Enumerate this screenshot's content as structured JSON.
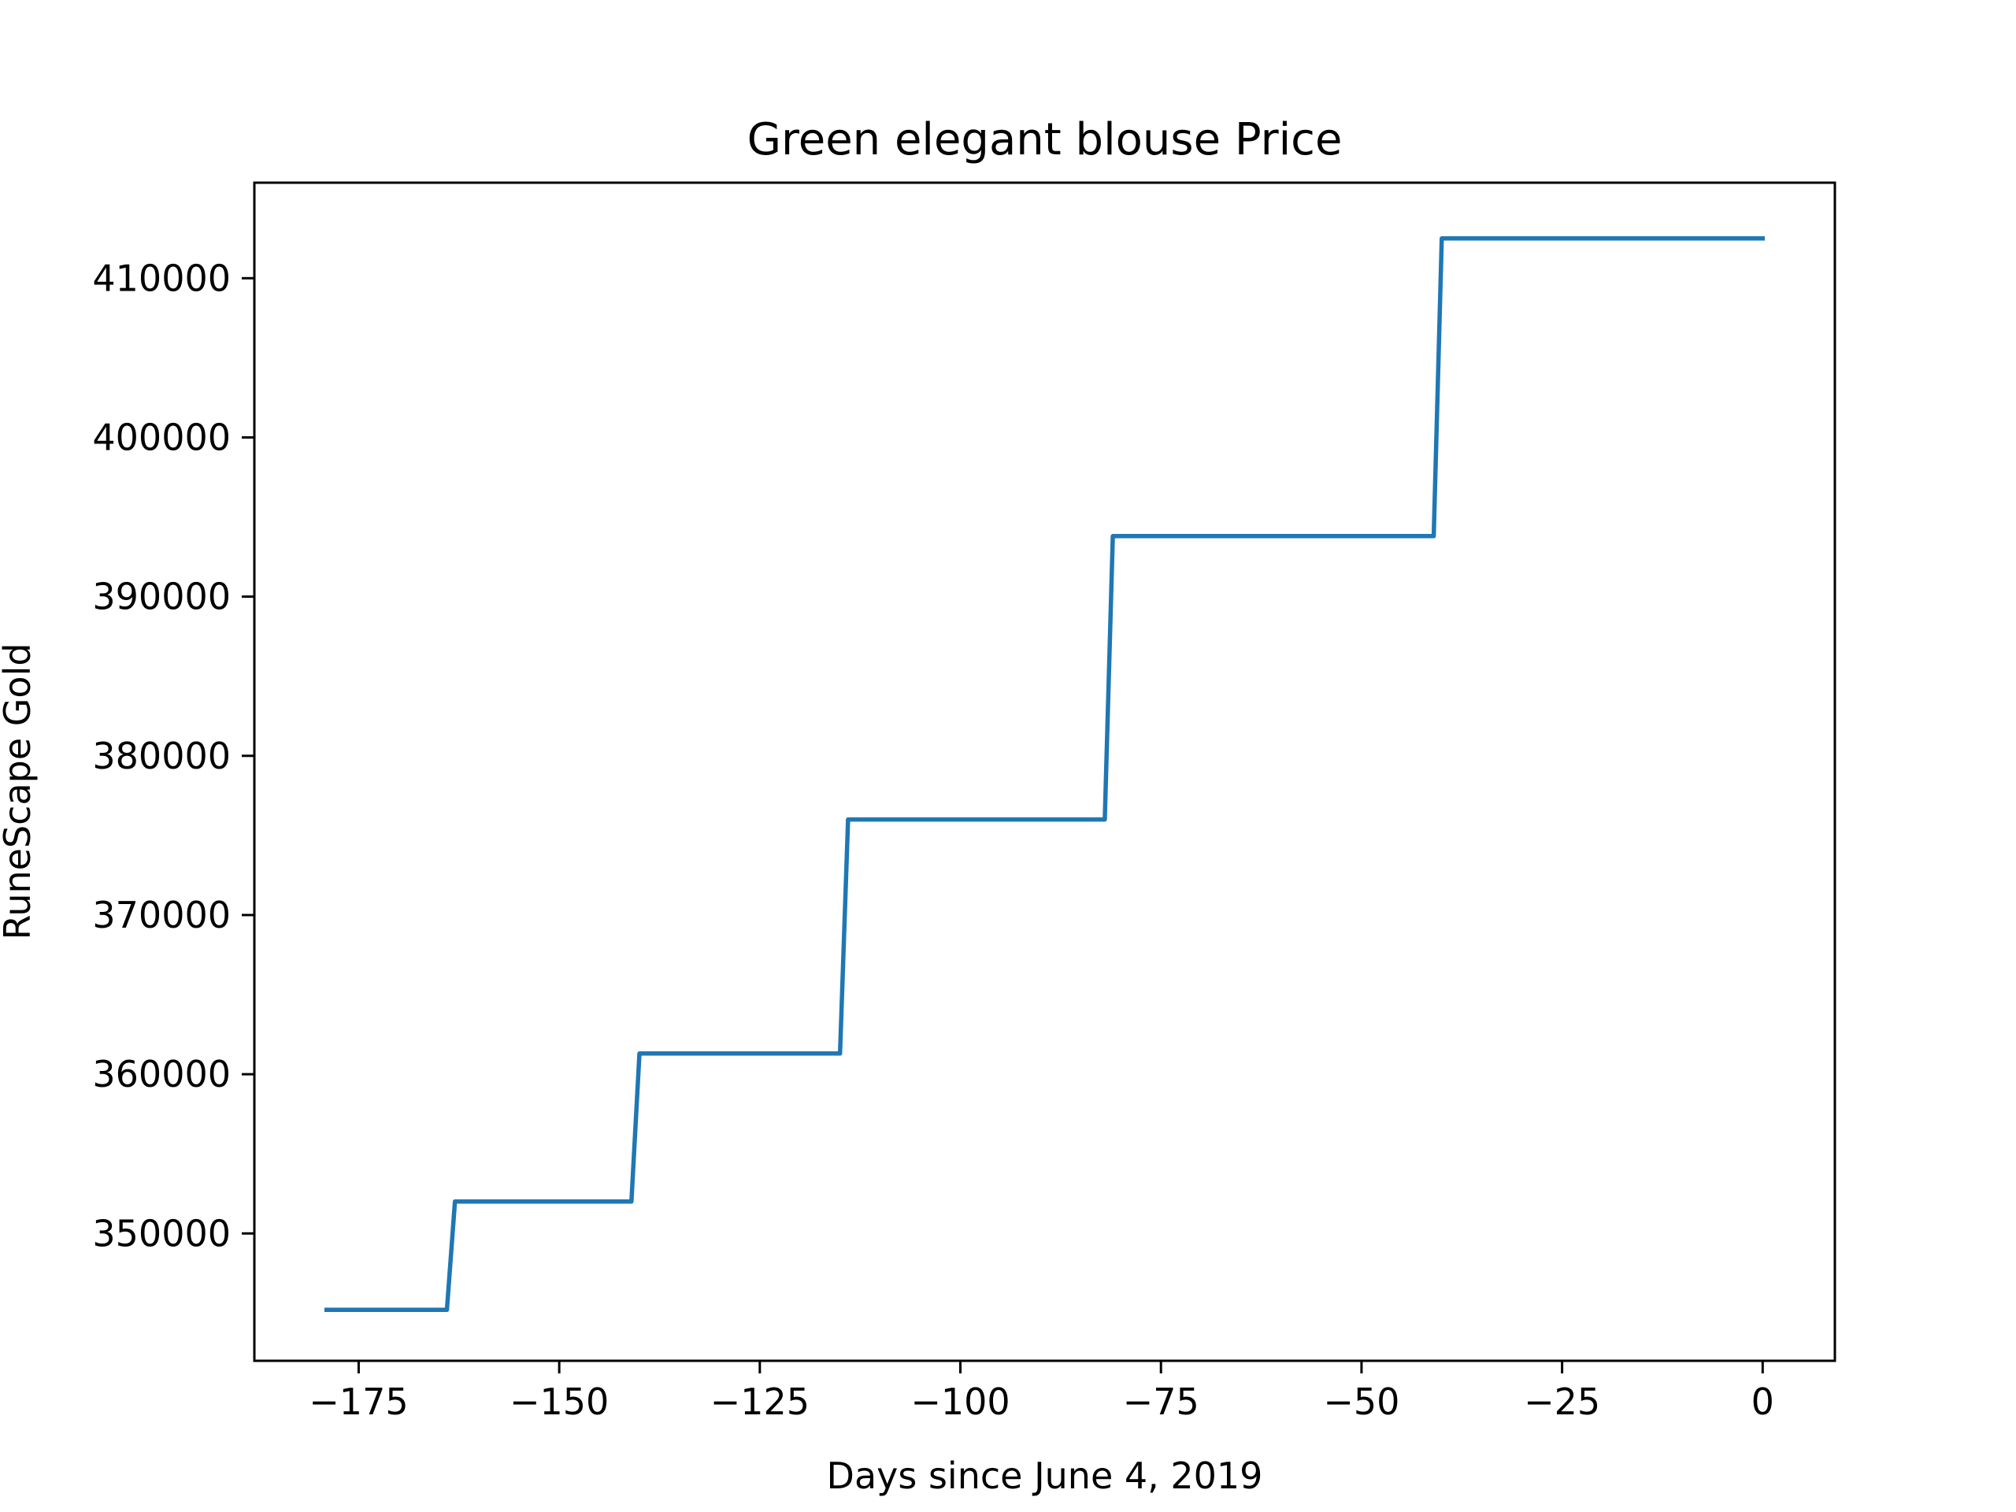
{
  "chart_data": {
    "type": "line",
    "title": "Green elegant blouse Price",
    "xlabel": "Days since June 4, 2019",
    "ylabel": "RuneScape Gold",
    "xlim": [
      -188,
      9
    ],
    "ylim": [
      342000,
      416000
    ],
    "xticks": [
      -175,
      -150,
      -125,
      -100,
      -75,
      -50,
      -25,
      0
    ],
    "xtick_labels": [
      "−175",
      "−150",
      "−125",
      "−100",
      "−75",
      "−50",
      "−25",
      "0"
    ],
    "yticks": [
      350000,
      360000,
      370000,
      380000,
      390000,
      400000,
      410000
    ],
    "ytick_labels": [
      "350000",
      "360000",
      "370000",
      "380000",
      "390000",
      "400000",
      "410000"
    ],
    "grid": false,
    "line_color": "#1f77b4",
    "series": [
      {
        "x": [
          -179,
          -164,
          -163,
          -141,
          -140,
          -115,
          -114,
          -82,
          -81,
          -41,
          -40,
          0
        ],
        "y": [
          345200,
          345200,
          352000,
          352000,
          361300,
          361300,
          376000,
          376000,
          393800,
          393800,
          412500,
          412500
        ]
      }
    ]
  }
}
